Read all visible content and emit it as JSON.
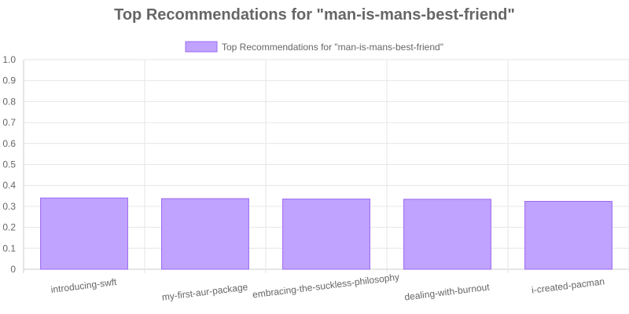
{
  "chart_data": {
    "type": "bar",
    "title": "Top Recommendations for \"man-is-mans-best-friend\"",
    "categories": [
      "introducing-swft",
      "my-first-aur-package",
      "embracing-the-suckless-philosophy",
      "dealing-with-burnout",
      "i-created-pacman"
    ],
    "series": [
      {
        "name": "Top Recommendations for \"man-is-mans-best-friend\"",
        "values": [
          0.34,
          0.337,
          0.335,
          0.334,
          0.324
        ]
      }
    ],
    "ylim": [
      0,
      1.0
    ],
    "yticks": [
      "0",
      "0.1",
      "0.2",
      "0.3",
      "0.4",
      "0.5",
      "0.6",
      "0.7",
      "0.8",
      "0.9",
      "1.0"
    ],
    "grid": true,
    "legend_position": "top",
    "colors": {
      "bar_fill": "#c0a2ff",
      "bar_border": "#9b6bf0",
      "grid": "#e6e6e6",
      "axis": "#cccccc",
      "text": "#666666"
    }
  }
}
